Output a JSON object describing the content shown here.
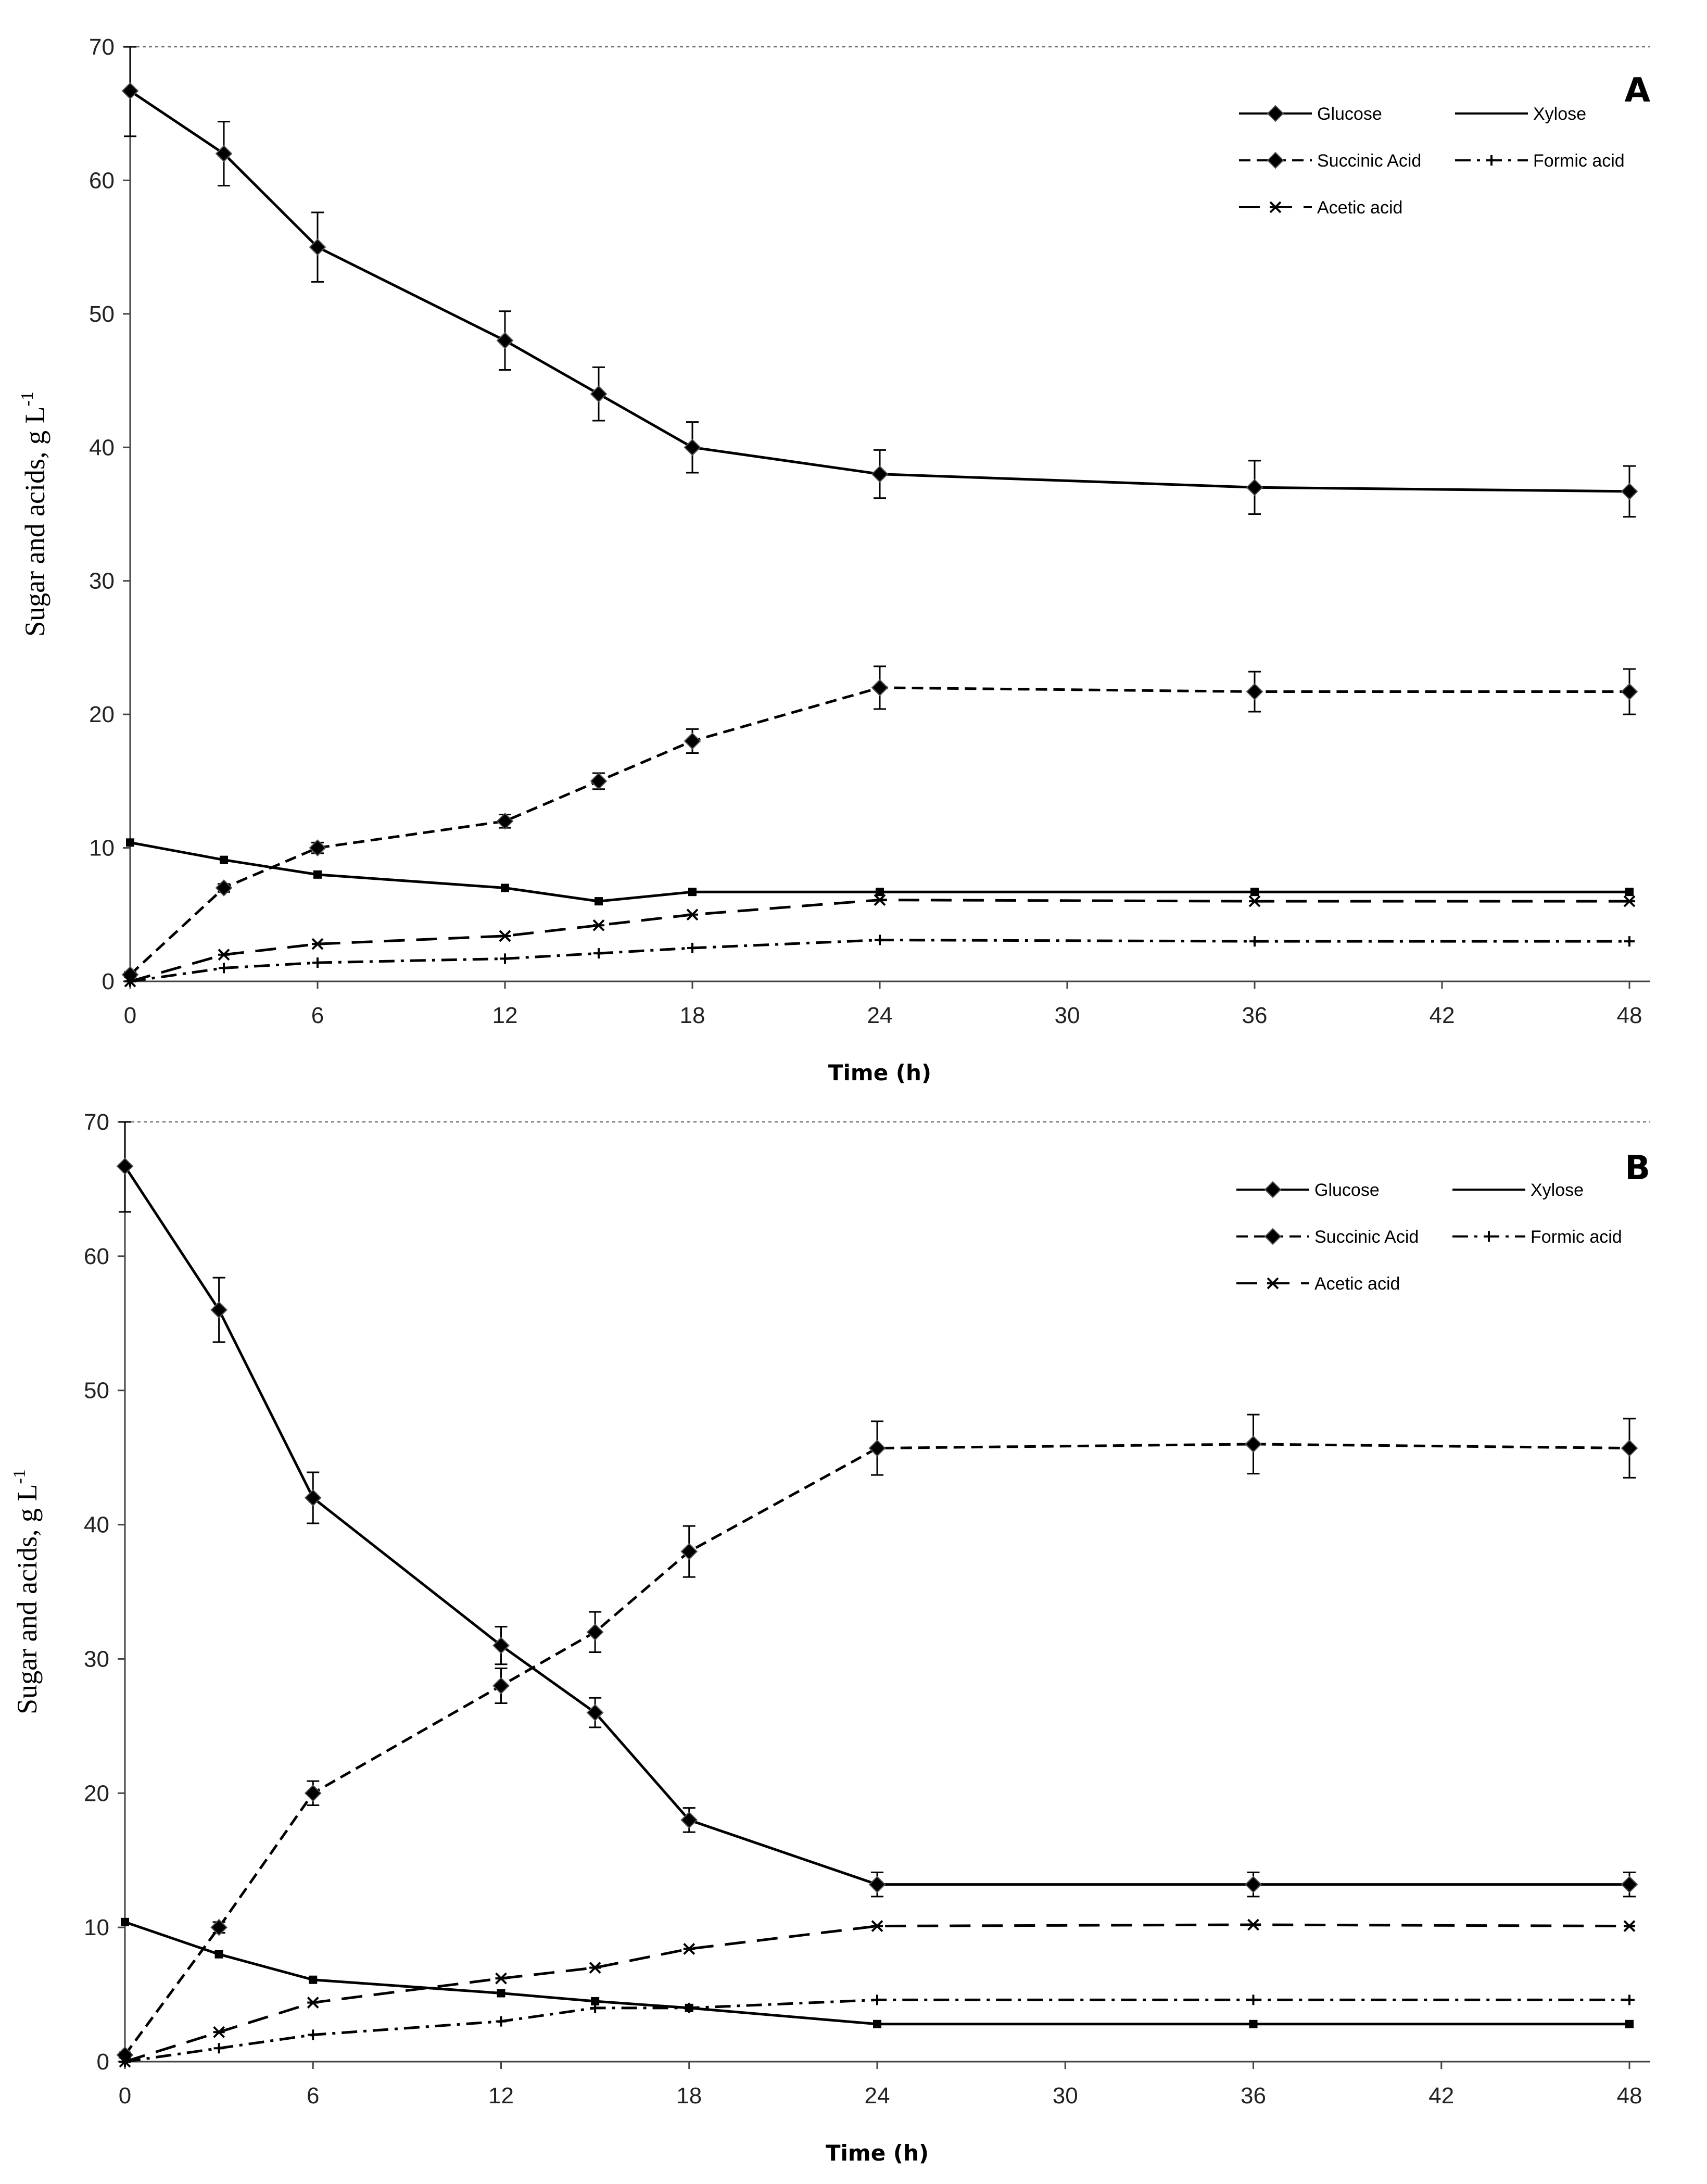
{
  "chart_data": [
    {
      "type": "line",
      "panel_label": "A",
      "xlabel": "Time (h)",
      "ylabel": "Sugar and acids, g L",
      "ylabel_superscript": "-1",
      "xlim": [
        0,
        48
      ],
      "ylim": [
        0,
        70
      ],
      "xticks": [
        0,
        6,
        12,
        18,
        24,
        30,
        36,
        42,
        48
      ],
      "yticks": [
        0,
        10,
        20,
        30,
        40,
        50,
        60,
        70
      ],
      "grid": false,
      "legend_position": "top-right",
      "series": [
        {
          "name": "Glucose",
          "style": "solid",
          "marker": "diamond",
          "x": [
            0,
            3,
            6,
            12,
            15,
            18,
            24,
            36,
            48
          ],
          "y": [
            66.7,
            62,
            55,
            48,
            44,
            40,
            38,
            37,
            36.7
          ],
          "err": [
            3.4,
            2.4,
            2.6,
            2.2,
            2.0,
            1.9,
            1.8,
            2.0,
            1.9
          ]
        },
        {
          "name": "Xylose",
          "style": "solid",
          "marker": "square",
          "x": [
            0,
            3,
            6,
            12,
            15,
            18,
            24,
            36,
            48
          ],
          "y": [
            10.4,
            9.1,
            8.0,
            7.0,
            6.0,
            6.7,
            6.7,
            6.7,
            6.7
          ],
          "err": []
        },
        {
          "name": "Succinic Acid",
          "style": "dashed",
          "marker": "diamond",
          "x": [
            0,
            3,
            6,
            12,
            15,
            18,
            24,
            36,
            48
          ],
          "y": [
            0.5,
            7,
            10,
            12,
            15,
            18,
            22,
            21.7,
            21.7
          ],
          "err": [
            0.2,
            0.3,
            0.4,
            0.5,
            0.6,
            0.9,
            1.6,
            1.5,
            1.7
          ]
        },
        {
          "name": "Formic acid",
          "style": "dashdot",
          "marker": "plus",
          "x": [
            0,
            3,
            6,
            12,
            15,
            18,
            24,
            36,
            48
          ],
          "y": [
            0,
            1.0,
            1.4,
            1.7,
            2.1,
            2.5,
            3.1,
            3.0,
            3.0
          ],
          "err": []
        },
        {
          "name": "Acetic acid",
          "style": "longdash",
          "marker": "asterisk",
          "x": [
            0,
            3,
            6,
            12,
            15,
            18,
            24,
            36,
            48
          ],
          "y": [
            0,
            2.0,
            2.8,
            3.4,
            4.2,
            5.0,
            6.1,
            6.0,
            6.0
          ],
          "err": []
        }
      ]
    },
    {
      "type": "line",
      "panel_label": "B",
      "xlabel": "Time (h)",
      "ylabel": "Sugar and acids, g L",
      "ylabel_superscript": "-1",
      "xlim": [
        0,
        48
      ],
      "ylim": [
        0,
        70
      ],
      "xticks": [
        0,
        6,
        12,
        18,
        24,
        30,
        36,
        42,
        48
      ],
      "yticks": [
        0,
        10,
        20,
        30,
        40,
        50,
        60,
        70
      ],
      "grid": false,
      "legend_position": "top-right",
      "series": [
        {
          "name": "Glucose",
          "style": "solid",
          "marker": "diamond",
          "x": [
            0,
            3,
            6,
            12,
            15,
            18,
            24,
            36,
            48
          ],
          "y": [
            66.7,
            56,
            42,
            31,
            26,
            18,
            13.2,
            13.2,
            13.2
          ],
          "err": [
            3.4,
            2.4,
            1.9,
            1.4,
            1.1,
            0.9,
            0.9,
            0.9,
            0.9
          ]
        },
        {
          "name": "Xylose",
          "style": "solid",
          "marker": "square",
          "x": [
            0,
            3,
            6,
            12,
            15,
            18,
            24,
            36,
            48
          ],
          "y": [
            10.4,
            8.0,
            6.1,
            5.1,
            4.5,
            4.0,
            2.8,
            2.8,
            2.8
          ],
          "err": []
        },
        {
          "name": "Succinic Acid",
          "style": "dashed",
          "marker": "diamond",
          "x": [
            0,
            3,
            6,
            12,
            15,
            18,
            24,
            36,
            48
          ],
          "y": [
            0.5,
            10,
            20,
            28,
            32,
            38,
            45.7,
            46,
            45.7
          ],
          "err": [
            0.2,
            0.4,
            0.9,
            1.3,
            1.5,
            1.9,
            2.0,
            2.2,
            2.2
          ]
        },
        {
          "name": "Formic acid",
          "style": "dashdot",
          "marker": "plus",
          "x": [
            0,
            3,
            6,
            12,
            15,
            18,
            24,
            36,
            48
          ],
          "y": [
            0,
            1.0,
            2.0,
            3.0,
            4.0,
            4.0,
            4.6,
            4.6,
            4.6
          ],
          "err": []
        },
        {
          "name": "Acetic acid",
          "style": "longdash",
          "marker": "asterisk",
          "x": [
            0,
            3,
            6,
            12,
            15,
            18,
            24,
            36,
            48
          ],
          "y": [
            0,
            2.2,
            4.4,
            6.2,
            7.0,
            8.4,
            10.1,
            10.2,
            10.1
          ],
          "err": []
        }
      ]
    }
  ],
  "legend_order": [
    "Glucose",
    "Xylose",
    "Succinic Acid",
    "Formic acid",
    "Acetic acid"
  ],
  "colors": {
    "line": "#000000",
    "axis": "#444444",
    "background": "#ffffff"
  }
}
